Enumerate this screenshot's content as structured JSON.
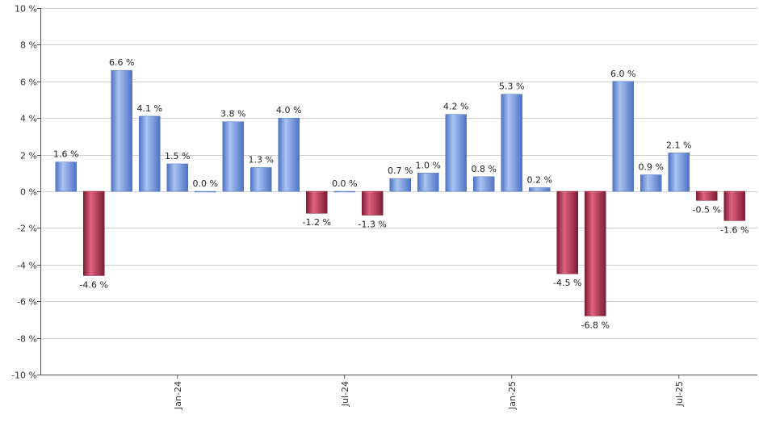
{
  "chart_data": {
    "type": "bar",
    "title": "",
    "xlabel": "",
    "ylabel": "",
    "ylim": [
      -10,
      10
    ],
    "y_ticks": [
      10,
      8,
      6,
      4,
      2,
      0,
      -2,
      -4,
      -6,
      -8,
      -10
    ],
    "y_tick_labels": [
      "10 %",
      "8 %",
      "6 %",
      "4 %",
      "2 %",
      "0 %",
      "-2 %",
      "-4 %",
      "-6 %",
      "-8 %",
      "-10 %"
    ],
    "grid": true,
    "legend": "none",
    "x_tick_labels": [
      {
        "label": "Jan-24",
        "index": 4
      },
      {
        "label": "Jul-24",
        "index": 10
      },
      {
        "label": "Jan-25",
        "index": 16
      },
      {
        "label": "Jul-25",
        "index": 22
      }
    ],
    "values": [
      1.6,
      -4.6,
      6.6,
      4.1,
      1.5,
      0.0,
      3.8,
      1.3,
      4.0,
      -1.2,
      0.0,
      -1.3,
      0.7,
      1.0,
      4.2,
      0.8,
      5.3,
      0.2,
      -4.5,
      -6.8,
      6.0,
      0.9,
      2.1,
      -0.5,
      -1.6
    ],
    "value_labels": [
      "1.6 %",
      "-4.6 %",
      "6.6 %",
      "4.1 %",
      "1.5 %",
      "0.0 %",
      "3.8 %",
      "1.3 %",
      "4.0 %",
      "-1.2 %",
      "0.0 %",
      "-1.3 %",
      "0.7 %",
      "1.0 %",
      "4.2 %",
      "0.8 %",
      "5.3 %",
      "0.2 %",
      "-4.5 %",
      "-6.8 %",
      "6.0 %",
      "0.9 %",
      "2.1 %",
      "-0.5 %",
      "-1.6 %"
    ],
    "colors": {
      "positive_light": "#a9c3f2",
      "positive_dark": "#4f73c4",
      "negative_light": "#e0637d",
      "negative_dark": "#7e1b34"
    }
  }
}
